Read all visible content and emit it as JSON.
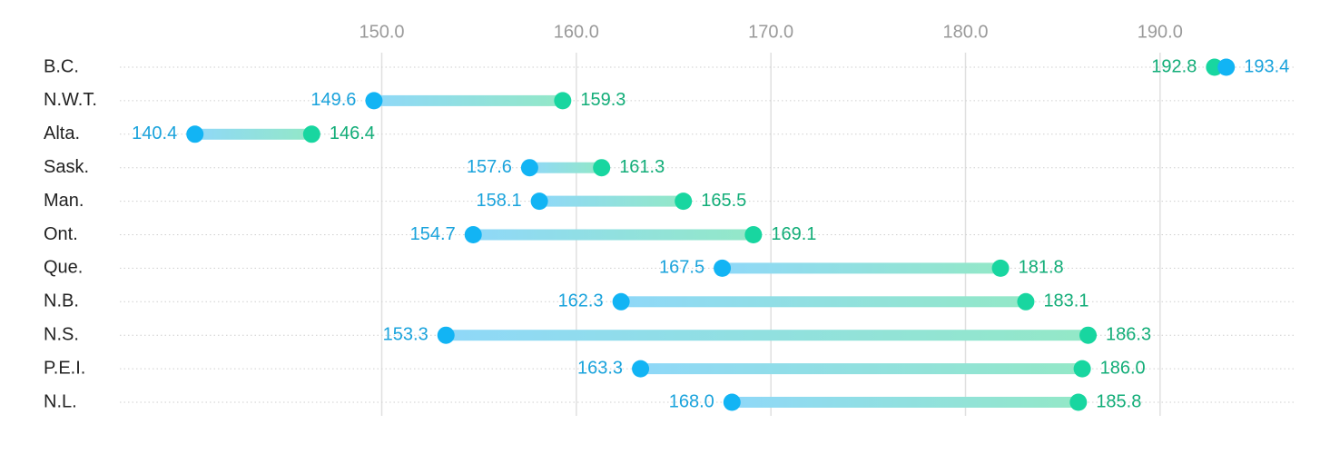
{
  "chart_data": {
    "type": "dumbbell",
    "x_ticks": [
      150.0,
      160.0,
      170.0,
      180.0,
      190.0
    ],
    "x_tick_labels": [
      "150.0",
      "160.0",
      "170.0",
      "180.0",
      "190.0"
    ],
    "xlim": [
      136.0,
      196.2
    ],
    "grid": true,
    "categories": [
      "B.C.",
      "N.W.T.",
      "Alta.",
      "Sask.",
      "Man.",
      "Ont.",
      "Que.",
      "N.B.",
      "N.S.",
      "P.E.I.",
      "N.L."
    ],
    "start_values": [
      193.4,
      149.6,
      140.4,
      157.6,
      158.1,
      154.7,
      167.5,
      162.3,
      153.3,
      163.3,
      168.0
    ],
    "end_values": [
      192.8,
      159.3,
      146.4,
      161.3,
      165.5,
      169.1,
      181.8,
      183.1,
      186.3,
      186.0,
      185.8
    ],
    "start_labels": [
      "193.4",
      "149.6",
      "140.4",
      "157.6",
      "158.1",
      "154.7",
      "167.5",
      "162.3",
      "153.3",
      "163.3",
      "168.0"
    ],
    "end_labels": [
      "192.8",
      "159.3",
      "146.4",
      "161.3",
      "165.5",
      "169.1",
      "181.8",
      "183.1",
      "186.3",
      "186.0",
      "185.8"
    ],
    "colors": {
      "start": "#12b4f4",
      "end": "#18d6a0",
      "start_text": "#1aa3dc",
      "end_text": "#12ad78",
      "bar_start": "#8fd8f8",
      "bar_end": "#93e8c7",
      "gridline": "#e0e0e0",
      "row_rule": "#cfcfcf",
      "tick_text": "#9a9a9a",
      "category_text": "#222222"
    }
  }
}
